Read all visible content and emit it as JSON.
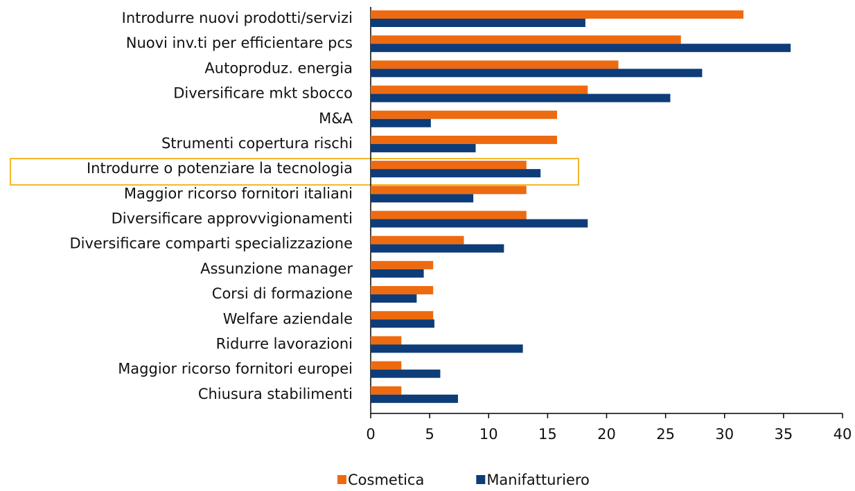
{
  "chart_data": {
    "type": "barh",
    "categories": [
      "Introdurre nuovi prodotti/servizi",
      "Nuovi inv.ti per efficientare pcs",
      "Autoproduz. energia",
      "Diversificare mkt sbocco",
      "M&A",
      "Strumenti copertura rischi",
      "Introdurre o potenziare la tecnologia",
      "Maggior ricorso fornitori italiani",
      "Diversificare approvvigionamenti",
      "Diversificare comparti specializzazione",
      "Assunzione manager",
      "Corsi di formazione",
      "Welfare aziendale",
      "Ridurre lavorazioni",
      "Maggior ricorso fornitori europei",
      "Chiusura stabilimenti"
    ],
    "series": [
      {
        "name": "Cosmetica",
        "color": "#ee6a10",
        "values": [
          31.6,
          26.3,
          21.0,
          18.4,
          15.8,
          15.8,
          13.2,
          13.2,
          13.2,
          7.9,
          5.3,
          5.3,
          5.3,
          2.6,
          2.6,
          2.6
        ]
      },
      {
        "name": "Manifatturiero",
        "color": "#0d3c78",
        "values": [
          18.2,
          35.6,
          28.1,
          25.4,
          5.1,
          8.9,
          14.4,
          8.7,
          18.4,
          11.3,
          4.5,
          3.9,
          5.4,
          12.9,
          5.9,
          7.4
        ]
      }
    ],
    "xlim": [
      0,
      40
    ],
    "xticks": [
      0,
      5,
      10,
      15,
      20,
      25,
      30,
      35,
      40
    ],
    "legend": "bottom"
  }
}
